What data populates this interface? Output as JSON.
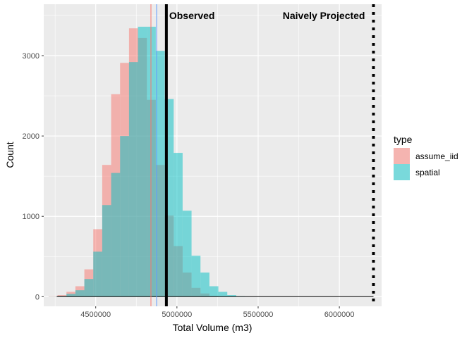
{
  "chart_data": {
    "type": "histogram",
    "xlabel": "Total Volume (m3)",
    "ylabel": "Count",
    "xlim": [
      4180000,
      6260000
    ],
    "ylim": [
      -120,
      3640
    ],
    "x_ticks": [
      4500000,
      5000000,
      5500000,
      6000000
    ],
    "x_tick_labels": [
      "4500000",
      "5000000",
      "5500000",
      "6000000"
    ],
    "y_ticks": [
      0,
      1000,
      2000,
      3000
    ],
    "y_tick_labels": [
      "0",
      "1000",
      "2000",
      "3000"
    ],
    "grid": true,
    "bin_width": 55000,
    "bin_lefts": [
      4210000,
      4265000,
      4320000,
      4375000,
      4430000,
      4485000,
      4540000,
      4595000,
      4650000,
      4705000,
      4760000,
      4815000,
      4870000,
      4925000,
      4980000,
      5035000,
      5090000,
      5145000,
      5200000,
      5255000,
      5310000,
      5365000,
      5420000
    ],
    "series": [
      {
        "name": "assume_iid",
        "color": "#F8766D",
        "values": [
          5,
          20,
          60,
          130,
          340,
          840,
          1640,
          2520,
          2910,
          3340,
          3220,
          2450,
          1640,
          1010,
          630,
          300,
          110,
          40,
          10,
          3,
          1,
          0,
          0
        ]
      },
      {
        "name": "spatial",
        "color": "#00BFC4",
        "values": [
          2,
          8,
          35,
          80,
          220,
          560,
          1140,
          1540,
          2000,
          2920,
          3360,
          3360,
          3060,
          2460,
          1790,
          1070,
          510,
          300,
          130,
          60,
          20,
          5,
          0
        ]
      }
    ],
    "vlines": [
      {
        "x": 4840000,
        "color": "#F8766D",
        "style": "solid",
        "weight": "thin"
      },
      {
        "x": 4875000,
        "color": "#619CFF",
        "style": "solid",
        "weight": "thin"
      },
      {
        "x": 4935000,
        "color": "#000000",
        "style": "solid",
        "weight": "thick"
      },
      {
        "x": 6210000,
        "color": "#000000",
        "style": "dotted",
        "weight": "thick"
      }
    ],
    "baseline": {
      "from": 4260000,
      "to": 6210000
    },
    "annotations": [
      {
        "text": "Observed",
        "x": 4935000,
        "y": 3500,
        "align": "left"
      },
      {
        "text": "Naively Projected",
        "x": 6210000,
        "y": 3500,
        "align": "right"
      }
    ],
    "legend": {
      "title": "type",
      "position": "right",
      "items": [
        "assume_iid",
        "spatial"
      ]
    },
    "panel_background": "#EBEBEB",
    "grid_color": "#FFFFFF"
  }
}
